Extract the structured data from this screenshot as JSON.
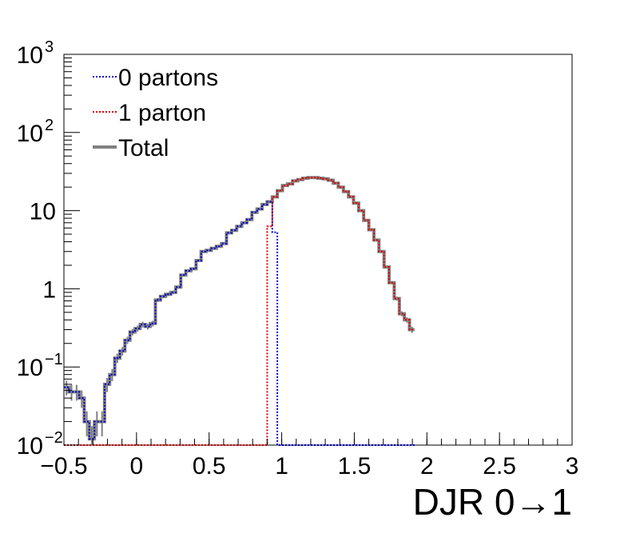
{
  "chart_data": {
    "type": "histogram",
    "title": "",
    "xlabel": "DJR 0→1",
    "ylabel": "",
    "xlim": [
      -0.5,
      3.0
    ],
    "ylim": [
      0.01,
      1000
    ],
    "yscale": "log",
    "grid": false,
    "legend_placement": "top-left",
    "x_ticks": [
      {
        "value": -0.5,
        "label": "−0.5"
      },
      {
        "value": 0,
        "label": "0"
      },
      {
        "value": 0.5,
        "label": "0.5"
      },
      {
        "value": 1,
        "label": "1"
      },
      {
        "value": 1.5,
        "label": "1.5"
      },
      {
        "value": 2,
        "label": "2"
      },
      {
        "value": 2.5,
        "label": "2.5"
      },
      {
        "value": 3,
        "label": "3"
      }
    ],
    "y_ticks": [
      {
        "value": 0.01,
        "label_base": "10",
        "label_exp": "−2"
      },
      {
        "value": 0.1,
        "label_base": "10",
        "label_exp": "−1"
      },
      {
        "value": 1,
        "label_base": "1",
        "label_exp": ""
      },
      {
        "value": 10,
        "label_base": "10",
        "label_exp": ""
      },
      {
        "value": 100,
        "label_base": "10",
        "label_exp": "2"
      },
      {
        "value": 1000,
        "label_base": "10",
        "label_exp": "3"
      }
    ],
    "bin_edges_start": -0.5,
    "bin_width": 0.035,
    "series": [
      {
        "name": "Total",
        "color": "#808080",
        "style": "solid",
        "values": [
          0.055,
          0.048,
          0.048,
          0.04,
          0.02,
          0.012,
          0.02,
          0.02,
          0.06,
          0.08,
          0.13,
          0.16,
          0.22,
          0.28,
          0.31,
          0.35,
          0.33,
          0.36,
          0.72,
          0.8,
          0.85,
          0.9,
          1.05,
          1.5,
          1.7,
          1.8,
          2.3,
          3.0,
          3.1,
          3.3,
          3.5,
          3.8,
          5.2,
          5.6,
          6.3,
          7.0,
          7.7,
          9.5,
          10.5,
          12.0,
          13.0,
          15.0,
          18.0,
          21.0,
          22.0,
          24.0,
          25.0,
          26.0,
          26.5,
          26.5,
          26.0,
          25.5,
          24.5,
          22.5,
          20.0,
          17.5,
          15.0,
          12.5,
          10.0,
          7.5,
          5.7,
          4.2,
          3.0,
          1.9,
          1.2,
          0.75,
          0.48,
          0.4,
          0.3
        ]
      },
      {
        "name": "0 partons",
        "color": "#0000cc",
        "style": "dotted",
        "values": [
          0.055,
          0.048,
          0.048,
          0.04,
          0.02,
          0.012,
          0.02,
          0.02,
          0.06,
          0.08,
          0.13,
          0.16,
          0.22,
          0.28,
          0.31,
          0.35,
          0.33,
          0.36,
          0.72,
          0.8,
          0.85,
          0.9,
          1.05,
          1.5,
          1.7,
          1.8,
          2.3,
          3.0,
          3.1,
          3.3,
          3.5,
          3.8,
          5.2,
          5.6,
          6.3,
          7.0,
          7.7,
          9.5,
          10.5,
          12.0,
          13.0,
          5.3,
          0,
          0,
          0,
          0,
          0,
          0,
          0,
          0,
          0,
          0,
          0,
          0,
          0,
          0,
          0,
          0,
          0,
          0,
          0,
          0,
          0,
          0,
          0,
          0,
          0,
          0,
          0
        ]
      },
      {
        "name": "1 parton",
        "color": "#dd0000",
        "style": "dotted",
        "values": [
          0,
          0,
          0,
          0,
          0,
          0,
          0,
          0,
          0,
          0,
          0,
          0,
          0,
          0,
          0,
          0,
          0,
          0,
          0,
          0,
          0,
          0,
          0,
          0,
          0,
          0,
          0,
          0,
          0,
          0,
          0,
          0,
          0,
          0,
          0,
          0,
          0,
          0,
          0,
          0,
          6.3,
          15.0,
          18.0,
          21.0,
          22.0,
          24.0,
          25.0,
          26.0,
          26.5,
          26.5,
          26.0,
          25.5,
          24.5,
          22.5,
          20.0,
          17.5,
          15.0,
          12.5,
          10.0,
          7.5,
          5.7,
          4.2,
          3.0,
          1.9,
          1.2,
          0.75,
          0.48,
          0.4,
          0.3
        ]
      }
    ],
    "legend": [
      {
        "label": "0 partons",
        "series": "0 partons"
      },
      {
        "label": "1 parton",
        "series": "1 parton"
      },
      {
        "label": "Total",
        "series": "Total"
      }
    ]
  }
}
